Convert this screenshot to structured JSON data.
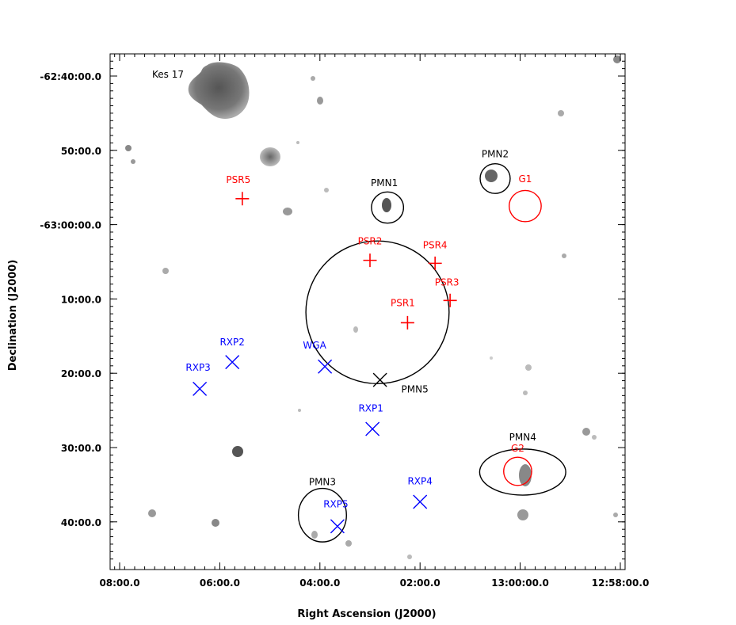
{
  "chart_data": {
    "type": "scatter",
    "xlabel": "Right Ascension (J2000)",
    "ylabel": "Declination (J2000)",
    "x_ticks": [
      {
        "ra_min": 0,
        "label": "08:00.0"
      },
      {
        "ra_min": 2,
        "label": "06:00.0"
      },
      {
        "ra_min": 4,
        "label": "04:00.0"
      },
      {
        "ra_min": 6,
        "label": "02:00.0"
      },
      {
        "ra_min": 8,
        "label": "13:00:00.0"
      },
      {
        "ra_min": 10,
        "label": "12:58:00.0"
      }
    ],
    "y_ticks": [
      {
        "dec_arcmin": 40,
        "label": "-62:40:00.0"
      },
      {
        "dec_arcmin": 50,
        "label": "50:00.0"
      },
      {
        "dec_arcmin": 60,
        "label": "-63:00:00.0"
      },
      {
        "dec_arcmin": 70,
        "label": "10:00.0"
      },
      {
        "dec_arcmin": 80,
        "label": "20:00.0"
      },
      {
        "dec_arcmin": 90,
        "label": "30:00.0"
      },
      {
        "dec_arcmin": 100,
        "label": "40:00.0"
      }
    ],
    "series": [
      {
        "name": "PSR",
        "marker": "plus",
        "color": "#ff0000",
        "points": [
          {
            "label": "PSR1",
            "ra_offset_min": 5.75,
            "dec_offset_arcmin": 73.2
          },
          {
            "label": "PSR2",
            "ra_offset_min": 5.0,
            "dec_offset_arcmin": 64.8
          },
          {
            "label": "PSR3",
            "ra_offset_min": 6.6,
            "dec_offset_arcmin": 70.2
          },
          {
            "label": "PSR4",
            "ra_offset_min": 6.3,
            "dec_offset_arcmin": 65.2
          },
          {
            "label": "PSR5",
            "ra_offset_min": 2.45,
            "dec_offset_arcmin": 56.5
          }
        ]
      },
      {
        "name": "RXP",
        "marker": "cross",
        "color": "#0000ff",
        "points": [
          {
            "label": "RXP1",
            "ra_offset_min": 5.05,
            "dec_offset_arcmin": 87.5
          },
          {
            "label": "RXP2",
            "ra_offset_min": 2.25,
            "dec_offset_arcmin": 78.5
          },
          {
            "label": "RXP3",
            "ra_offset_min": 1.6,
            "dec_offset_arcmin": 82.1
          },
          {
            "label": "RXP4",
            "ra_offset_min": 6.0,
            "dec_offset_arcmin": 97.3
          },
          {
            "label": "RXP5",
            "ra_offset_min": 4.35,
            "dec_offset_arcmin": 100.6
          }
        ]
      },
      {
        "name": "WGA",
        "marker": "cross",
        "color": "#0000ff",
        "points": [
          {
            "label": "WGA",
            "ra_offset_min": 4.1,
            "dec_offset_arcmin": 79.1
          }
        ]
      },
      {
        "name": "PMN5",
        "marker": "cross",
        "color": "#000000",
        "points": [
          {
            "label": "PMN5",
            "ra_offset_min": 5.2,
            "dec_offset_arcmin": 80.9
          }
        ]
      }
    ],
    "regions": [
      {
        "label": "Kes 17",
        "color": "#000000",
        "kind": "blob"
      },
      {
        "label": "PMN1",
        "color": "#000000",
        "kind": "ellipse",
        "ra_offset_min": 5.35,
        "dec_offset_arcmin": 57.7,
        "ra_radius_min": 0.32,
        "dec_radius_arcmin": 2.1
      },
      {
        "label": "PMN2",
        "color": "#000000",
        "kind": "ellipse",
        "ra_offset_min": 7.5,
        "dec_offset_arcmin": 53.8,
        "ra_radius_min": 0.3,
        "dec_radius_arcmin": 2.0
      },
      {
        "label": "PMN3",
        "color": "#000000",
        "kind": "ellipse",
        "ra_offset_min": 4.05,
        "dec_offset_arcmin": 99.1,
        "ra_radius_min": 0.48,
        "dec_radius_arcmin": 3.6
      },
      {
        "label": "PMN4",
        "color": "#000000",
        "kind": "ellipse",
        "ra_offset_min": 8.05,
        "dec_offset_arcmin": 93.3,
        "ra_radius_min": 0.86,
        "dec_radius_arcmin": 3.1
      },
      {
        "label": "",
        "color": "#000000",
        "kind": "ellipse",
        "ra_offset_min": 5.15,
        "dec_offset_arcmin": 71.8,
        "ra_radius_min": 1.43,
        "dec_radius_arcmin": 9.6
      },
      {
        "label": "G1",
        "color": "#ff0000",
        "kind": "ellipse",
        "ra_offset_min": 8.1,
        "dec_offset_arcmin": 57.5,
        "ra_radius_min": 0.32,
        "dec_radius_arcmin": 2.1
      },
      {
        "label": "G2",
        "color": "#ff0000",
        "kind": "ellipse",
        "ra_offset_min": 7.95,
        "dec_offset_arcmin": 93.2,
        "ra_radius_min": 0.28,
        "dec_radius_arcmin": 1.9
      }
    ],
    "xlim": [
      -0.2,
      10.0
    ],
    "ylim": [
      37.5,
      105.5
    ],
    "grid": false
  }
}
